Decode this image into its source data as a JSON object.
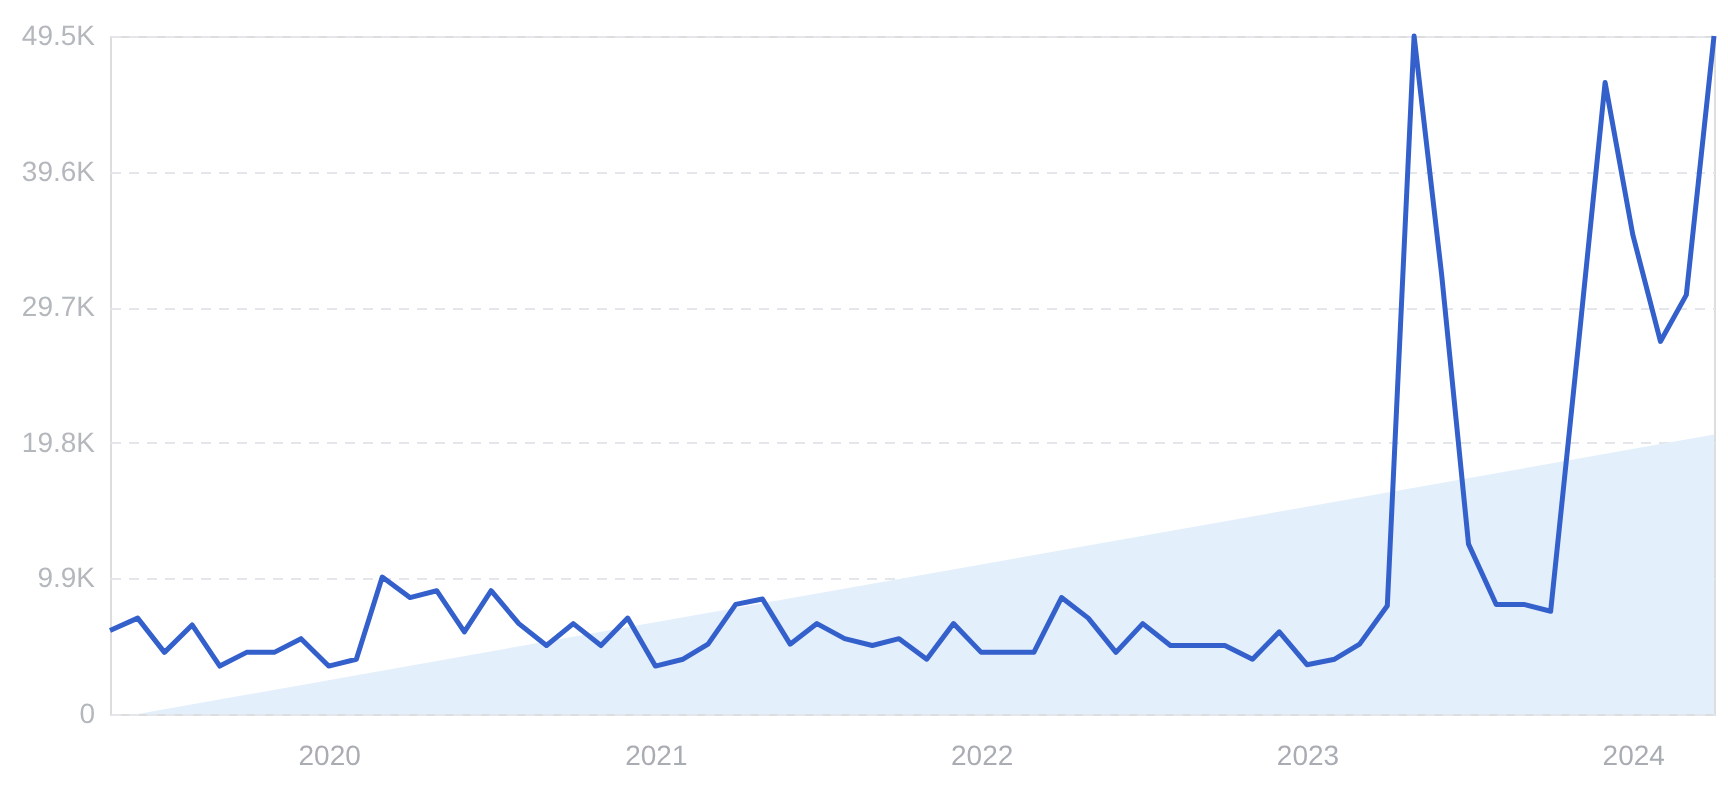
{
  "chart_data": {
    "type": "line",
    "x": [
      "2019-05",
      "2019-06",
      "2019-07",
      "2019-08",
      "2019-09",
      "2019-10",
      "2019-11",
      "2019-12",
      "2020-01",
      "2020-02",
      "2020-03",
      "2020-04",
      "2020-05",
      "2020-06",
      "2020-07",
      "2020-08",
      "2020-09",
      "2020-10",
      "2020-11",
      "2020-12",
      "2021-01",
      "2021-02",
      "2021-03",
      "2021-04",
      "2021-05",
      "2021-06",
      "2021-07",
      "2021-08",
      "2021-09",
      "2021-10",
      "2021-11",
      "2021-12",
      "2022-01",
      "2022-02",
      "2022-03",
      "2022-04",
      "2022-05",
      "2022-06",
      "2022-07",
      "2022-08",
      "2022-09",
      "2022-10",
      "2022-11",
      "2022-12",
      "2023-01",
      "2023-02",
      "2023-03",
      "2023-04",
      "2023-05",
      "2023-06",
      "2023-07",
      "2023-08",
      "2023-09",
      "2023-10",
      "2023-11",
      "2023-12",
      "2024-01",
      "2024-02",
      "2024-03",
      "2024-04"
    ],
    "series": [
      {
        "type": "area",
        "color": "#e4effc",
        "x": [
          "2019-06",
          "2024-04"
        ],
        "values": [
          0,
          20.4
        ]
      },
      {
        "color": "#3460cc",
        "values": [
          6.1,
          7.0,
          4.5,
          6.5,
          3.5,
          4.5,
          4.5,
          5.5,
          3.5,
          4.0,
          10.0,
          8.5,
          9.0,
          6.0,
          9.0,
          6.6,
          5.0,
          6.6,
          5.0,
          7.0,
          3.5,
          4.0,
          5.1,
          8.0,
          8.4,
          5.1,
          6.6,
          5.5,
          5.0,
          5.5,
          4.0,
          6.6,
          4.5,
          4.5,
          4.5,
          8.5,
          7.0,
          4.5,
          6.6,
          5.0,
          5.0,
          5.0,
          4.0,
          6.0,
          3.6,
          4.0,
          5.1,
          7.9,
          49.5,
          32.0,
          12.4,
          8.0,
          8.0,
          7.5,
          26.9,
          46.1,
          35.0,
          27.2,
          30.6,
          49.5
        ]
      }
    ],
    "xlim": [
      "2019-05",
      "2024-04"
    ],
    "xticks": [
      {
        "value": "2020-01",
        "label": "2020"
      },
      {
        "value": "2021-01",
        "label": "2021"
      },
      {
        "value": "2022-01",
        "label": "2022"
      },
      {
        "value": "2023-01",
        "label": "2023"
      },
      {
        "value": "2024-01",
        "label": "2024"
      }
    ],
    "ylim": [
      0,
      49.5
    ],
    "yticks": [
      {
        "value": 0,
        "label": "0"
      },
      {
        "value": 9.9,
        "label": "9.9K"
      },
      {
        "value": 19.8,
        "label": "19.8K"
      },
      {
        "value": 29.7,
        "label": "29.7K"
      },
      {
        "value": 39.6,
        "label": "39.6K"
      },
      {
        "value": 49.5,
        "label": "49.5K"
      }
    ],
    "grid": "y",
    "marker": "none",
    "line_style": "solid"
  }
}
